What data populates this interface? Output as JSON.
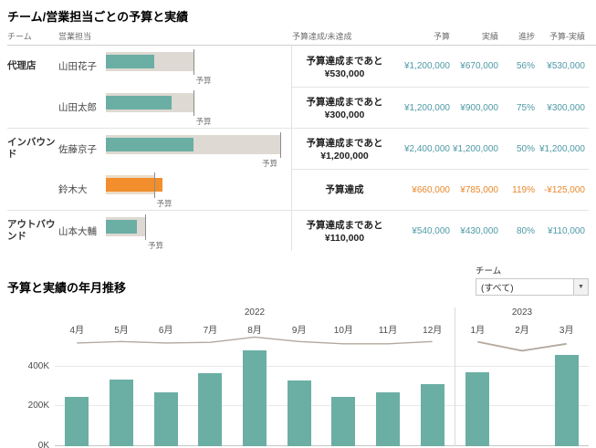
{
  "section1": {
    "title": "チーム/営業担当ごとの予算と実績"
  },
  "section2": {
    "title": "予算と実績の年月推移"
  },
  "table": {
    "headers": {
      "team": "チーム",
      "rep": "営業担当",
      "status": "予算達成/未達成",
      "budget": "予算",
      "actual": "実績",
      "progress": "進捗",
      "diff": "予算-実績"
    },
    "bar_axis_max": 2550000,
    "budget_marker_label": "予算",
    "rows": [
      {
        "team": "代理店",
        "rep": "山田花子",
        "group_start": true,
        "achieved": false,
        "status": [
          "予算達成まであと",
          "¥530,000"
        ],
        "budget_value": 1200000,
        "actual_value": 670000,
        "budget": "¥1,200,000",
        "actual": "¥670,000",
        "progress": "56%",
        "diff": "¥530,000"
      },
      {
        "team": "",
        "rep": "山田太郎",
        "group_start": false,
        "achieved": false,
        "status": [
          "予算達成まであと",
          "¥300,000"
        ],
        "budget_value": 1200000,
        "actual_value": 900000,
        "budget": "¥1,200,000",
        "actual": "¥900,000",
        "progress": "75%",
        "diff": "¥300,000"
      },
      {
        "team": "インバウンド",
        "rep": "佐藤京子",
        "group_start": true,
        "achieved": false,
        "status": [
          "予算達成まであと",
          "¥1,200,000"
        ],
        "budget_value": 2400000,
        "actual_value": 1200000,
        "budget": "¥2,400,000",
        "actual": "¥1,200,000",
        "progress": "50%",
        "diff": "¥1,200,000"
      },
      {
        "team": "",
        "rep": "鈴木大",
        "group_start": false,
        "achieved": true,
        "status": [
          "予算達成"
        ],
        "budget_value": 660000,
        "actual_value": 785000,
        "budget": "¥660,000",
        "actual": "¥785,000",
        "progress": "119%",
        "diff": "-¥125,000"
      },
      {
        "team": "アウトバウンド",
        "rep": "山本大輔",
        "group_start": true,
        "achieved": false,
        "status": [
          "予算達成まであと",
          "¥110,000"
        ],
        "budget_value": 540000,
        "actual_value": 430000,
        "budget": "¥540,000",
        "actual": "¥430,000",
        "progress": "80%",
        "diff": "¥110,000"
      }
    ]
  },
  "filter": {
    "label": "チーム",
    "value": "(すべて)",
    "dropdown_arrow": "▼"
  },
  "chart_data": [
    {
      "type": "table",
      "title": "チーム/営業担当ごとの予算と実績",
      "columns": [
        "チーム",
        "営業担当",
        "予算達成/未達成",
        "予算",
        "実績",
        "進捗",
        "予算-実績"
      ],
      "rows": [
        [
          "代理店",
          "山田花子",
          "予算達成まであと ¥530,000",
          1200000,
          670000,
          "56%",
          530000
        ],
        [
          "代理店",
          "山田太郎",
          "予算達成まであと ¥300,000",
          1200000,
          900000,
          "75%",
          300000
        ],
        [
          "インバウンド",
          "佐藤京子",
          "予算達成まであと ¥1,200,000",
          2400000,
          1200000,
          "50%",
          1200000
        ],
        [
          "インバウンド",
          "鈴木大",
          "予算達成",
          660000,
          785000,
          "119%",
          -125000
        ],
        [
          "アウトバウンド",
          "山本大輔",
          "予算達成まであと ¥110,000",
          540000,
          430000,
          "80%",
          110000
        ]
      ]
    },
    {
      "type": "bar",
      "title": "予算と実績の年月推移",
      "xlabel": "",
      "ylabel": "",
      "ylim": [
        0,
        560
      ],
      "unit": "K",
      "y_ticks": [
        {
          "label": "0K",
          "value": 0
        },
        {
          "label": "200K",
          "value": 200
        },
        {
          "label": "400K",
          "value": 400
        }
      ],
      "legend": [
        "実績 (bar)",
        "予算 (line)"
      ],
      "groups": [
        {
          "year": "2022",
          "months": [
            "4月",
            "5月",
            "6月",
            "7月",
            "8月",
            "9月",
            "10月",
            "11月",
            "12月"
          ],
          "actual": [
            250,
            335,
            270,
            365,
            480,
            330,
            250,
            270,
            310
          ],
          "budget": [
            505,
            515,
            505,
            510,
            545,
            515,
            500,
            500,
            515
          ]
        },
        {
          "year": "2023",
          "months": [
            "1月",
            "2月",
            "3月"
          ],
          "actual": [
            370,
            null,
            460
          ],
          "budget": [
            525,
            480,
            515
          ]
        }
      ]
    }
  ],
  "colors": {
    "teal": "#6BAEA4",
    "teal_text": "#4E9AA6",
    "orange": "#F28E2B",
    "orange_text": "#E8882B",
    "band": "#DED9D2",
    "band_warm": "#EBDCC7",
    "trend_line": "#B3A89E"
  }
}
